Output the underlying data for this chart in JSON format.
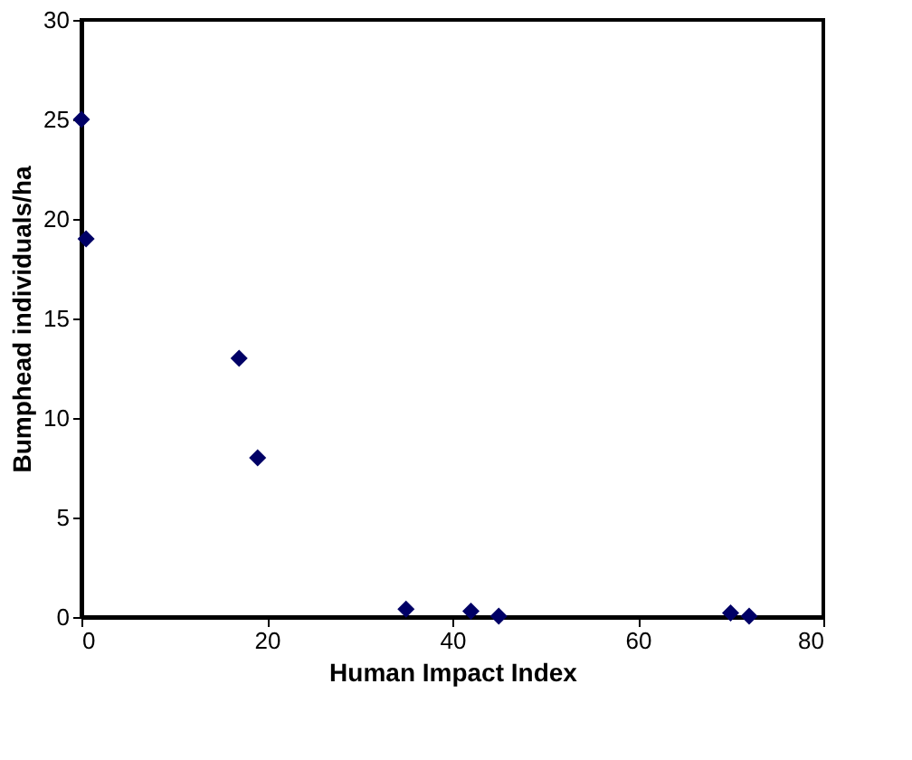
{
  "chart_data": {
    "type": "scatter",
    "xlabel": "Human Impact Index",
    "ylabel": "Bumphead individuals/ha",
    "x": [
      0,
      0.5,
      17,
      19,
      35,
      42,
      45,
      70,
      72
    ],
    "series": [
      {
        "color": "#000066",
        "values": [
          25,
          19,
          13,
          8,
          0.4,
          0.3,
          0.05,
          0.2,
          0.05
        ]
      }
    ],
    "xlim": [
      0,
      80
    ],
    "xticks": [
      0,
      20,
      40,
      60,
      80
    ],
    "ylim": [
      0,
      30
    ],
    "yticks": [
      0,
      5,
      10,
      15,
      20,
      25,
      30
    ],
    "grid": false,
    "legend": false,
    "marker": "diamond"
  }
}
